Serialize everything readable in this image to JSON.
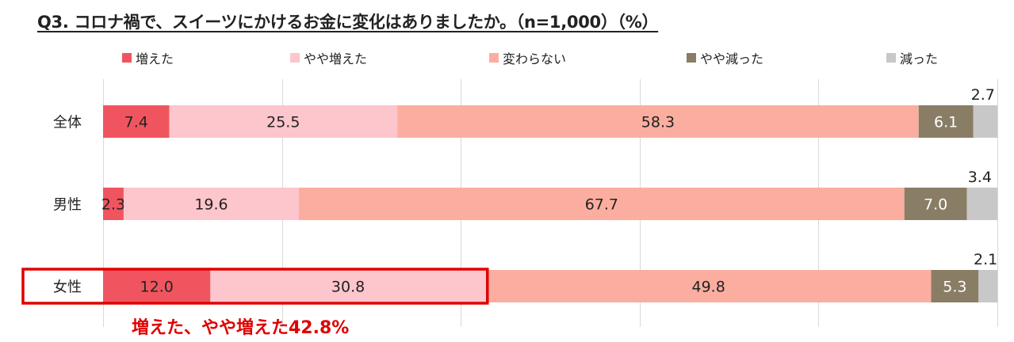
{
  "title": "Q3. コロナ禍で、スイーツにかけるお金に変化はありましたか。（n=1,000）（%）",
  "note": "増えた、やや増えた42.8%",
  "colors": {
    "series": [
      "#f0555f",
      "#fdc5cc",
      "#fbaea0",
      "#8a7d66",
      "#c8c8c8"
    ],
    "highlight": "#e00000",
    "grid": "#d9d9d9"
  },
  "chart_data": {
    "type": "bar",
    "orientation": "horizontal",
    "stacked": true,
    "categories": [
      "全体",
      "男性",
      "女性"
    ],
    "series": [
      {
        "name": "増えた",
        "values": [
          7.4,
          2.3,
          12.0
        ]
      },
      {
        "name": "やや増えた",
        "values": [
          25.5,
          19.6,
          30.8
        ]
      },
      {
        "name": "変わらない",
        "values": [
          58.3,
          67.7,
          49.8
        ]
      },
      {
        "name": "やや減った",
        "values": [
          6.1,
          7.0,
          5.3
        ]
      },
      {
        "name": "減った",
        "values": [
          2.7,
          3.4,
          2.1
        ]
      }
    ],
    "labels": [
      [
        "7.4",
        "25.5",
        "58.3",
        "6.1",
        "2.7"
      ],
      [
        "2.3",
        "19.6",
        "67.7",
        "7.0",
        "3.4"
      ],
      [
        "12.0",
        "30.8",
        "49.8",
        "5.3",
        "2.1"
      ]
    ],
    "xlim": [
      0,
      100
    ],
    "grid": true,
    "legend": "top",
    "highlight": {
      "category": "女性",
      "series": [
        "増えた",
        "やや増えた"
      ]
    }
  }
}
